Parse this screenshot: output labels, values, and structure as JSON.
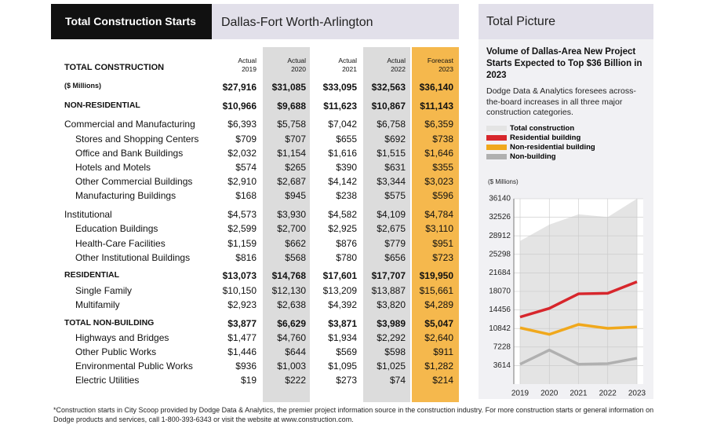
{
  "table": {
    "title": "Total Construction Starts",
    "region": "Dallas-Fort Worth-Arlington",
    "corner": "TOTAL CONSTRUCTION",
    "columns": [
      {
        "label": "Actual",
        "year": "2019"
      },
      {
        "label": "Actual",
        "year": "2020"
      },
      {
        "label": "Actual",
        "year": "2021"
      },
      {
        "label": "Actual",
        "year": "2022"
      },
      {
        "label": "Forecast",
        "year": "2023"
      }
    ],
    "rows": [
      {
        "level": 0,
        "label": "($ Millions)",
        "cells": [
          "$27,916",
          "$31,085",
          "$33,095",
          "$32,563",
          "$36,140"
        ]
      },
      {
        "level": 0,
        "label": "NON-RESIDENTIAL",
        "cells": [
          "$10,966",
          "$9,688",
          "$11,623",
          "$10,867",
          "$11,143"
        ]
      },
      {
        "level": 1,
        "label": "Commercial and Manufacturing",
        "cells": [
          "$6,393",
          "$5,758",
          "$7,042",
          "$6,758",
          "$6,359"
        ]
      },
      {
        "level": 2,
        "label": "Stores and Shopping Centers",
        "cells": [
          "$709",
          "$707",
          "$655",
          "$692",
          "$738"
        ]
      },
      {
        "level": 2,
        "label": "Office and Bank Buildings",
        "cells": [
          "$2,032",
          "$1,154",
          "$1,616",
          "$1,515",
          "$1,646"
        ]
      },
      {
        "level": 2,
        "label": "Hotels and Motels",
        "cells": [
          "$574",
          "$265",
          "$390",
          "$631",
          "$355"
        ]
      },
      {
        "level": 2,
        "label": "Other Commercial Buildings",
        "cells": [
          "$2,910",
          "$2,687",
          "$4,142",
          "$3,344",
          "$3,023"
        ]
      },
      {
        "level": 2,
        "label": "Manufacturing Buildings",
        "cells": [
          "$168",
          "$945",
          "$238",
          "$575",
          "$596"
        ]
      },
      {
        "level": 1,
        "label": "Institutional",
        "cells": [
          "$4,573",
          "$3,930",
          "$4,582",
          "$4,109",
          "$4,784"
        ]
      },
      {
        "level": 2,
        "label": "Education Buildings",
        "cells": [
          "$2,599",
          "$2,700",
          "$2,925",
          "$2,675",
          "$3,110"
        ]
      },
      {
        "level": 2,
        "label": "Health-Care Facilities",
        "cells": [
          "$1,159",
          "$662",
          "$876",
          "$779",
          "$951"
        ]
      },
      {
        "level": 2,
        "label": "Other Institutional Buildings",
        "cells": [
          "$816",
          "$568",
          "$780",
          "$656",
          "$723"
        ]
      },
      {
        "level": 0,
        "label": "RESIDENTIAL",
        "cells": [
          "$13,073",
          "$14,768",
          "$17,601",
          "$17,707",
          "$19,950"
        ]
      },
      {
        "level": 2,
        "label": "Single Family",
        "cells": [
          "$10,150",
          "$12,130",
          "$13,209",
          "$13,887",
          "$15,661"
        ]
      },
      {
        "level": 2,
        "label": "Multifamily",
        "cells": [
          "$2,923",
          "$2,638",
          "$4,392",
          "$3,820",
          "$4,289"
        ]
      },
      {
        "level": 0,
        "label": "TOTAL NON-BUILDING",
        "cells": [
          "$3,877",
          "$6,629",
          "$3,871",
          "$3,989",
          "$5,047"
        ]
      },
      {
        "level": 2,
        "label": "Highways and Bridges",
        "cells": [
          "$1,477",
          "$4,760",
          "$1,934",
          "$2,292",
          "$2,640"
        ]
      },
      {
        "level": 2,
        "label": "Other Public Works",
        "cells": [
          "$1,446",
          "$644",
          "$569",
          "$598",
          "$911"
        ]
      },
      {
        "level": 2,
        "label": "Environmental Public Works",
        "cells": [
          "$936",
          "$1,003",
          "$1,095",
          "$1,025",
          "$1,282"
        ]
      },
      {
        "level": 2,
        "label": "Electric Utilities",
        "cells": [
          "$19",
          "$222",
          "$273",
          "$74",
          "$214"
        ]
      }
    ],
    "footnote": "*Construction starts in City Scoop provided by Dodge Data & Analytics, the premier project information source in the construction industry. For more construction starts or general information on Dodge products and services, call 1-800-393-6343 or visit the website at www.construction.com."
  },
  "panel_title": "Total Picture",
  "chart_data": {
    "type": "line",
    "title": "Volume of Dallas-Area New Project Starts Expected to Top $36 Billion in 2023",
    "subtitle": "Dodge Data & Analytics foresees across-the-board increases in all three major construction categories.",
    "y_label": "($ Millions)",
    "categories": [
      "2019",
      "2020",
      "2021",
      "2022",
      "2023"
    ],
    "series": [
      {
        "name": "Total construction",
        "color": "#e4e4e4",
        "fill": true,
        "values": [
          27916,
          31085,
          33095,
          32563,
          36140
        ]
      },
      {
        "name": "Residential building",
        "color": "#d7262c",
        "values": [
          13073,
          14768,
          17601,
          17707,
          19950
        ]
      },
      {
        "name": "Non-residential building",
        "color": "#f0a81c",
        "values": [
          10966,
          9688,
          11623,
          10867,
          11143
        ]
      },
      {
        "name": "Non-building",
        "color": "#b0b0b0",
        "values": [
          3877,
          6629,
          3871,
          3989,
          5047
        ]
      }
    ],
    "ylim": [
      0,
      36140
    ],
    "yticks": [
      3614,
      7228,
      10842,
      14456,
      18070,
      21684,
      25298,
      28912,
      32526,
      36140
    ],
    "grid": true
  }
}
